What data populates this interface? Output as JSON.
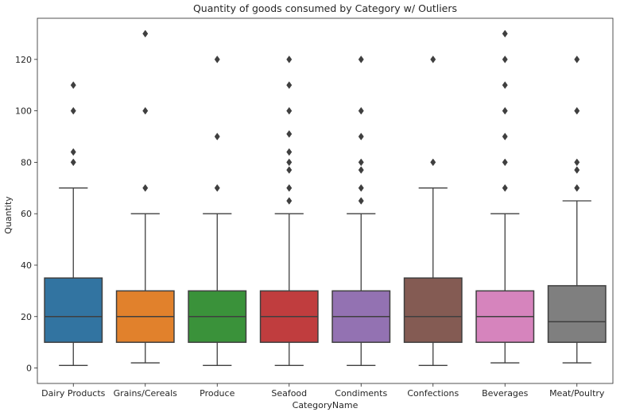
{
  "chart_data": {
    "type": "box",
    "title": "Quantity of goods consumed by Category w/ Outliers",
    "xlabel": "CategoryName",
    "ylabel": "Quantity",
    "ylim": [
      -6,
      136
    ],
    "yticks": [
      0,
      20,
      40,
      60,
      80,
      100,
      120
    ],
    "grid": false,
    "categories": [
      "Dairy Products",
      "Grains/Cereals",
      "Produce",
      "Seafood",
      "Condiments",
      "Confections",
      "Beverages",
      "Meat/Poultry"
    ],
    "colors": [
      "#3274a1",
      "#e1812c",
      "#3a923a",
      "#c03d3e",
      "#9372b2",
      "#845b53",
      "#d684bd",
      "#7f7f7f"
    ],
    "boxes": [
      {
        "whisker_low": 1,
        "q1": 10,
        "median": 20,
        "q3": 35,
        "whisker_high": 70,
        "outliers": [
          80,
          84,
          100,
          110
        ]
      },
      {
        "whisker_low": 2,
        "q1": 10,
        "median": 20,
        "q3": 30,
        "whisker_high": 60,
        "outliers": [
          70,
          100,
          130
        ]
      },
      {
        "whisker_low": 1,
        "q1": 10,
        "median": 20,
        "q3": 30,
        "whisker_high": 60,
        "outliers": [
          70,
          90,
          120
        ]
      },
      {
        "whisker_low": 1,
        "q1": 10,
        "median": 20,
        "q3": 30,
        "whisker_high": 60,
        "outliers": [
          65,
          70,
          77,
          80,
          84,
          91,
          100,
          110,
          120
        ]
      },
      {
        "whisker_low": 1,
        "q1": 10,
        "median": 20,
        "q3": 30,
        "whisker_high": 60,
        "outliers": [
          65,
          70,
          77,
          80,
          90,
          100,
          120
        ]
      },
      {
        "whisker_low": 1,
        "q1": 10,
        "median": 20,
        "q3": 35,
        "whisker_high": 70,
        "outliers": [
          80,
          120
        ]
      },
      {
        "whisker_low": 2,
        "q1": 10,
        "median": 20,
        "q3": 30,
        "whisker_high": 60,
        "outliers": [
          70,
          80,
          90,
          100,
          110,
          120,
          130
        ]
      },
      {
        "whisker_low": 2,
        "q1": 10,
        "median": 18,
        "q3": 32,
        "whisker_high": 65,
        "outliers": [
          70,
          77,
          80,
          100,
          120
        ]
      }
    ]
  }
}
